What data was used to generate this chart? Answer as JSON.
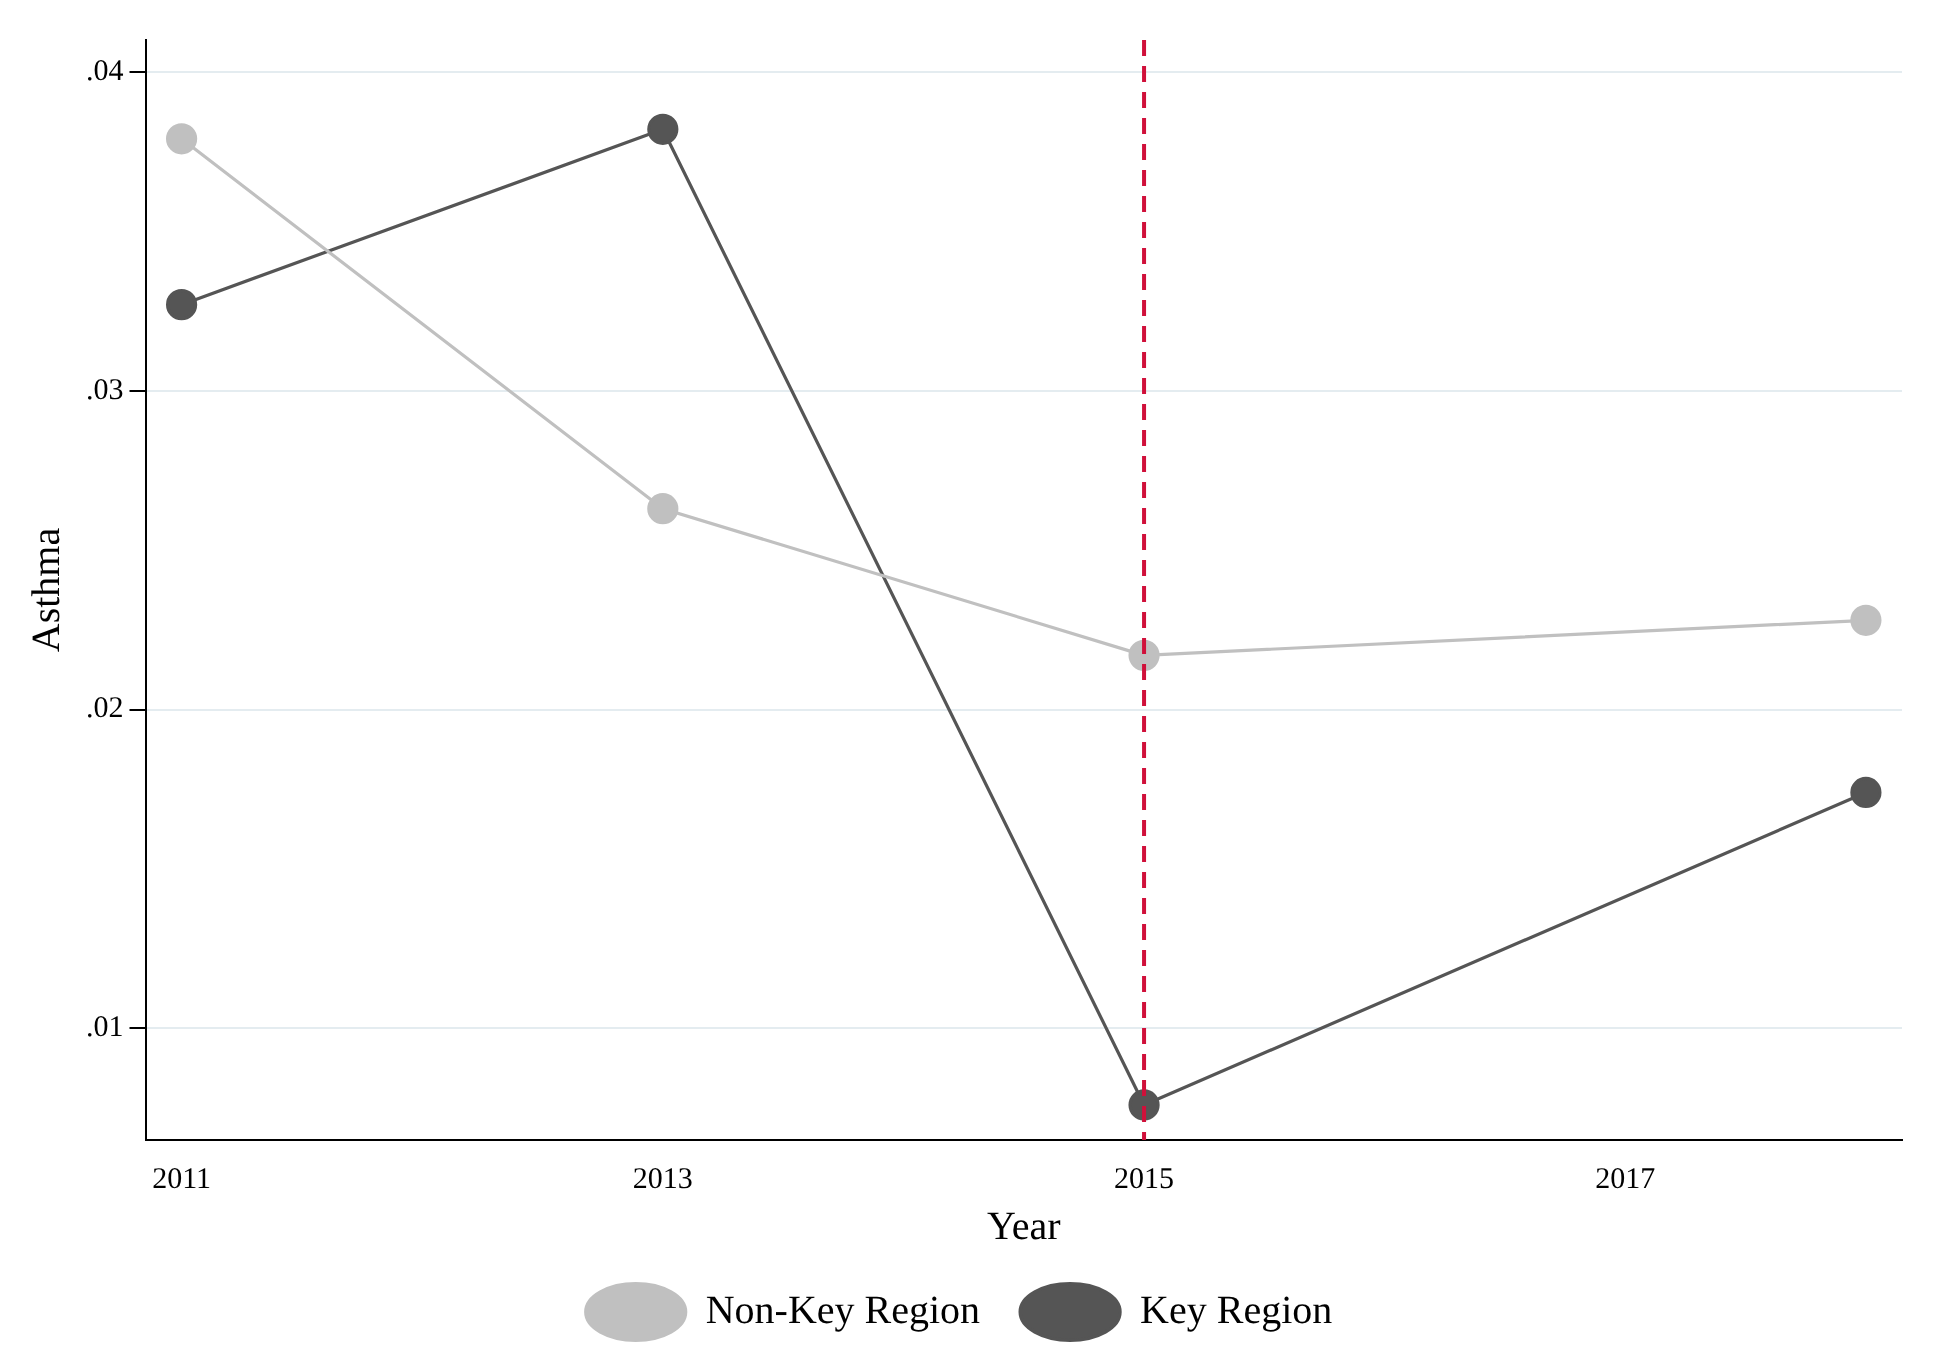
{
  "chart_data": {
    "type": "line",
    "xlabel": "Year",
    "ylabel": "Asthma",
    "xlim": [
      2010.85,
      2018.15
    ],
    "xticks": [
      2011,
      2013,
      2015,
      2017
    ],
    "ylim": [
      0.0065,
      0.041
    ],
    "yticks": [
      {
        "value": 0.01,
        "label": ".01"
      },
      {
        "value": 0.02,
        "label": ".02"
      },
      {
        "value": 0.03,
        "label": ".03"
      },
      {
        "value": 0.04,
        "label": ".04"
      }
    ],
    "x": [
      2011,
      2013,
      2015,
      2018
    ],
    "series": [
      {
        "name": "Non-Key Region",
        "color": "#c0c0c0",
        "values": [
          0.0379,
          0.0263,
          0.0217,
          0.0228
        ]
      },
      {
        "name": "Key Region",
        "color": "#555555",
        "values": [
          0.0327,
          0.0382,
          0.0076,
          0.0174
        ]
      }
    ],
    "ref_lines": [
      {
        "axis": "x",
        "value": 2015,
        "color": "#d0103a",
        "line_style": "dashed"
      }
    ],
    "grid": "y",
    "legend": "bottom",
    "marker": "circle",
    "line_style": "solid"
  }
}
